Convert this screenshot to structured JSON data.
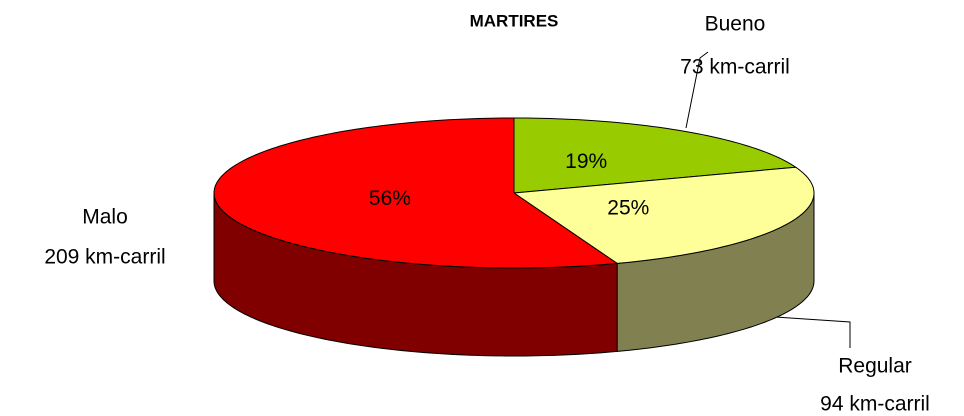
{
  "chart_data": {
    "type": "pie",
    "title": "MARTIRES",
    "categories": [
      "Bueno",
      "Regular",
      "Malo"
    ],
    "values": [
      73,
      94,
      209
    ],
    "value_labels": [
      "73 km-carril",
      "94 km-carril",
      "209 km-carril"
    ],
    "percents": [
      19,
      25,
      56
    ],
    "percent_labels": [
      "19%",
      "25%",
      "56%"
    ],
    "colors": [
      "#99cc00",
      "#ffff99",
      "#ff0000"
    ],
    "side_colors": [
      "#4d6600",
      "#808050",
      "#800000"
    ]
  }
}
